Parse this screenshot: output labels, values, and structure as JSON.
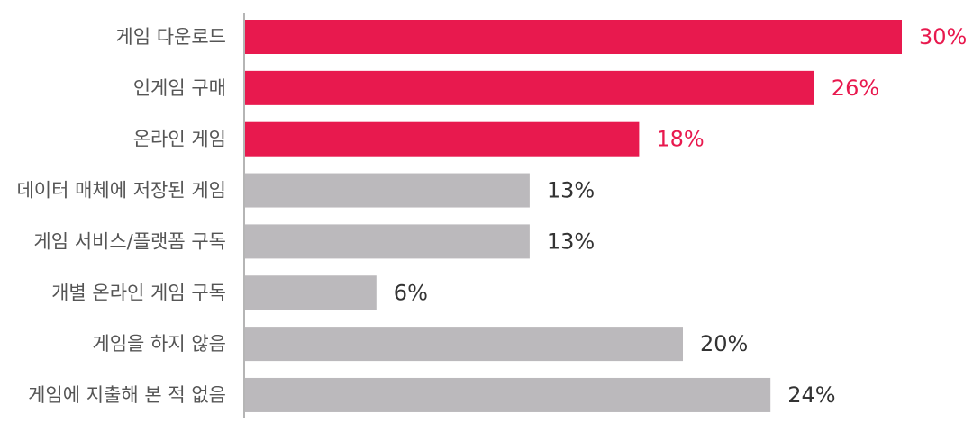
{
  "chart_data": {
    "type": "bar",
    "orientation": "horizontal",
    "title": "",
    "xlabel": "",
    "ylabel": "",
    "categories": [
      "게임 다운로드",
      "인게임 구매",
      "온라인 게임",
      "데이터 매체에 저장된 게임",
      "게임 서비스/플랫폼 구독",
      "개별 온라인 게임 구독",
      "게임을 하지 않음",
      "게임에 지출해 본 적 없음"
    ],
    "values": [
      30,
      26,
      18,
      13,
      13,
      6,
      20,
      24
    ],
    "value_labels": [
      "30%",
      "26%",
      "18%",
      "13%",
      "13%",
      "6%",
      "20%",
      "24%"
    ],
    "highlight": [
      true,
      true,
      true,
      false,
      false,
      false,
      false,
      false
    ],
    "xlim": [
      0,
      30
    ],
    "grid": false,
    "legend": "none",
    "colors": {
      "highlight": "#e8194e",
      "default": "#bbb9bc",
      "highlight_text": "#e8194e",
      "default_text": "#333333",
      "category_text": "#555555",
      "axis": "#b5b5b5"
    }
  }
}
